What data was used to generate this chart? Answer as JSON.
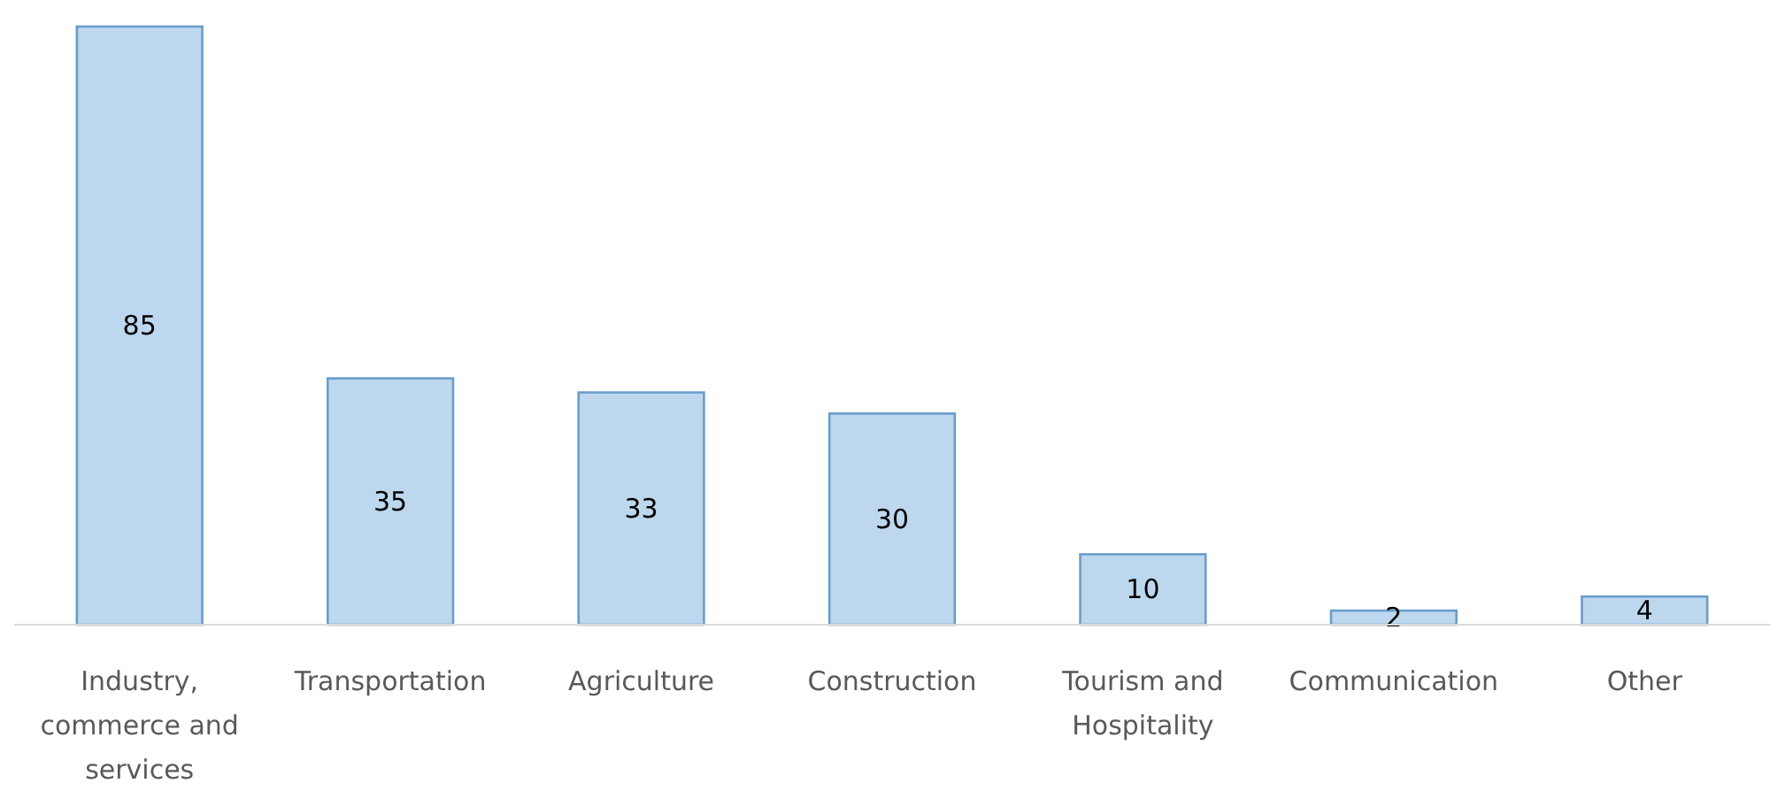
{
  "chart_data": {
    "type": "bar",
    "categories": [
      "Industry, commerce and services",
      "Transportation",
      "Agriculture",
      "Construction",
      "Tourism and Hospitality",
      "Communication",
      "Other"
    ],
    "values": [
      85,
      35,
      33,
      30,
      10,
      2,
      4
    ],
    "color": "#bdd7ee",
    "data_labels": true
  }
}
